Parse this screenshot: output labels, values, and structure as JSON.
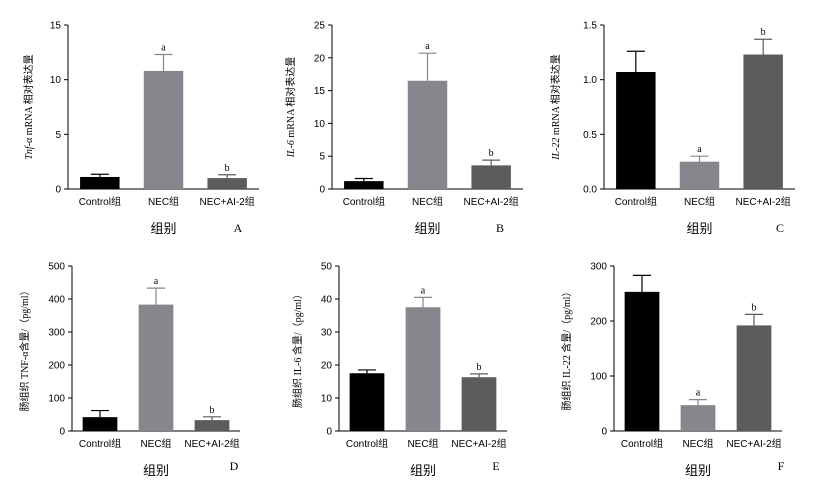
{
  "colors": {
    "control": "#000000",
    "nec": "#86868c",
    "nec_ai2": "#5c5c5c",
    "axis": "#000000"
  },
  "chart_data": [
    {
      "panel": "A",
      "type": "bar",
      "categories": [
        "Control组",
        "NEC组",
        "NEC+AI-2组"
      ],
      "values": [
        1.1,
        10.8,
        1.0
      ],
      "errors": [
        0.25,
        1.5,
        0.3
      ],
      "significance": [
        "",
        "a",
        "b"
      ],
      "ylabel_italic": "Tnf-",
      "ylabel": "α mRNA 相对表达量",
      "xlabel": "组别",
      "ylim": [
        0,
        15
      ],
      "yticks": [
        0,
        5,
        10,
        15
      ]
    },
    {
      "panel": "B",
      "type": "bar",
      "categories": [
        "Control组",
        "NEC组",
        "NEC+AI-2组"
      ],
      "values": [
        1.2,
        16.5,
        3.6
      ],
      "errors": [
        0.4,
        4.2,
        0.8
      ],
      "significance": [
        "",
        "a",
        "b"
      ],
      "ylabel_italic": "IL-6",
      "ylabel": " mRNA 相对表达量",
      "xlabel": "组别",
      "ylim": [
        0,
        25
      ],
      "yticks": [
        0,
        5,
        10,
        15,
        20,
        25
      ]
    },
    {
      "panel": "C",
      "type": "bar",
      "categories": [
        "Control组",
        "NEC组",
        "NEC+AI-2组"
      ],
      "values": [
        1.07,
        0.25,
        1.23
      ],
      "errors": [
        0.19,
        0.05,
        0.14
      ],
      "significance": [
        "",
        "a",
        "b"
      ],
      "ylabel_italic": "IL-22",
      "ylabel": " mRNA 相对表达量",
      "xlabel": "组别",
      "ylim": [
        0,
        1.5
      ],
      "yticks": [
        0.0,
        0.5,
        1.0,
        1.5
      ]
    },
    {
      "panel": "D",
      "type": "bar",
      "categories": [
        "Control组",
        "NEC组",
        "NEC+AI-2组"
      ],
      "values": [
        42,
        383,
        33
      ],
      "errors": [
        20,
        50,
        10
      ],
      "significance": [
        "",
        "a",
        "b"
      ],
      "ylabel": "肠组织 TNF-α含量/（pg/ml）",
      "xlabel": "组别",
      "ylim": [
        0,
        500
      ],
      "yticks": [
        0,
        100,
        200,
        300,
        400,
        500
      ]
    },
    {
      "panel": "E",
      "type": "bar",
      "categories": [
        "Control组",
        "NEC组",
        "NEC+AI-2组"
      ],
      "values": [
        17.5,
        37.5,
        16.3
      ],
      "errors": [
        1.0,
        3.0,
        1.0
      ],
      "significance": [
        "",
        "a",
        "b"
      ],
      "ylabel": "肠组织 IL-6 含量/（pg/ml）",
      "xlabel": "组别",
      "ylim": [
        0,
        50
      ],
      "yticks": [
        0,
        10,
        20,
        30,
        40,
        50
      ]
    },
    {
      "panel": "F",
      "type": "bar",
      "categories": [
        "Control组",
        "NEC组",
        "NEC+AI-2组"
      ],
      "values": [
        253,
        47,
        192
      ],
      "errors": [
        30,
        10,
        20
      ],
      "significance": [
        "",
        "a",
        "b"
      ],
      "ylabel": "肠组织 IL-22 含量/（pg/ml）",
      "xlabel": "组别",
      "ylim": [
        0,
        300
      ],
      "yticks": [
        0,
        100,
        200,
        300
      ]
    }
  ]
}
